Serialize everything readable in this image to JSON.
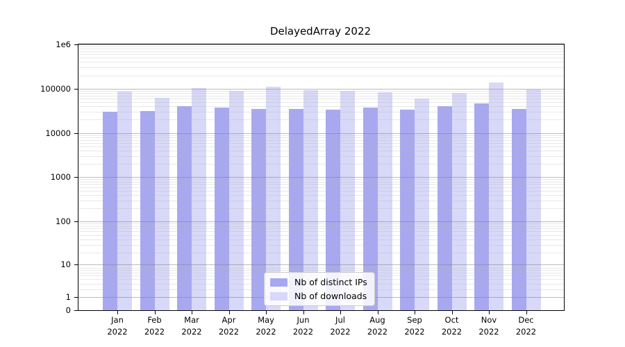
{
  "chart_data": {
    "type": "bar",
    "title": "DelayedArray 2022",
    "categories": [
      "Jan",
      "Feb",
      "Mar",
      "Apr",
      "May",
      "Jun",
      "Jul",
      "Aug",
      "Sep",
      "Oct",
      "Nov",
      "Dec"
    ],
    "category_year": "2022",
    "series": [
      {
        "name": "Nb of distinct IPs",
        "color": "#a8a8f0",
        "values": [
          30000,
          31000,
          40000,
          37000,
          35000,
          35000,
          34000,
          37000,
          34000,
          40000,
          47000,
          35500
        ]
      },
      {
        "name": "Nb of downloads",
        "color": "#d8d8f8",
        "values": [
          85000,
          63000,
          104000,
          90000,
          110000,
          92000,
          88000,
          82000,
          60000,
          80000,
          137000,
          96000
        ]
      }
    ],
    "yscale": "log10(1+x)",
    "ylim": [
      0,
      1000000
    ],
    "ytick_values": [
      0,
      1,
      10,
      100,
      1000,
      10000,
      100000,
      1000000
    ],
    "ytick_labels": [
      "0",
      "1",
      "10",
      "100",
      "1000",
      "10000",
      "100000",
      "1e6"
    ],
    "grid": true,
    "gridlines_over_bars": true,
    "legend_position": "bottom-center"
  },
  "colors": {
    "major_grid": "#b0b0b0",
    "minor_grid": "#e3e3e3",
    "axis": "#000000",
    "background": "#ffffff"
  }
}
